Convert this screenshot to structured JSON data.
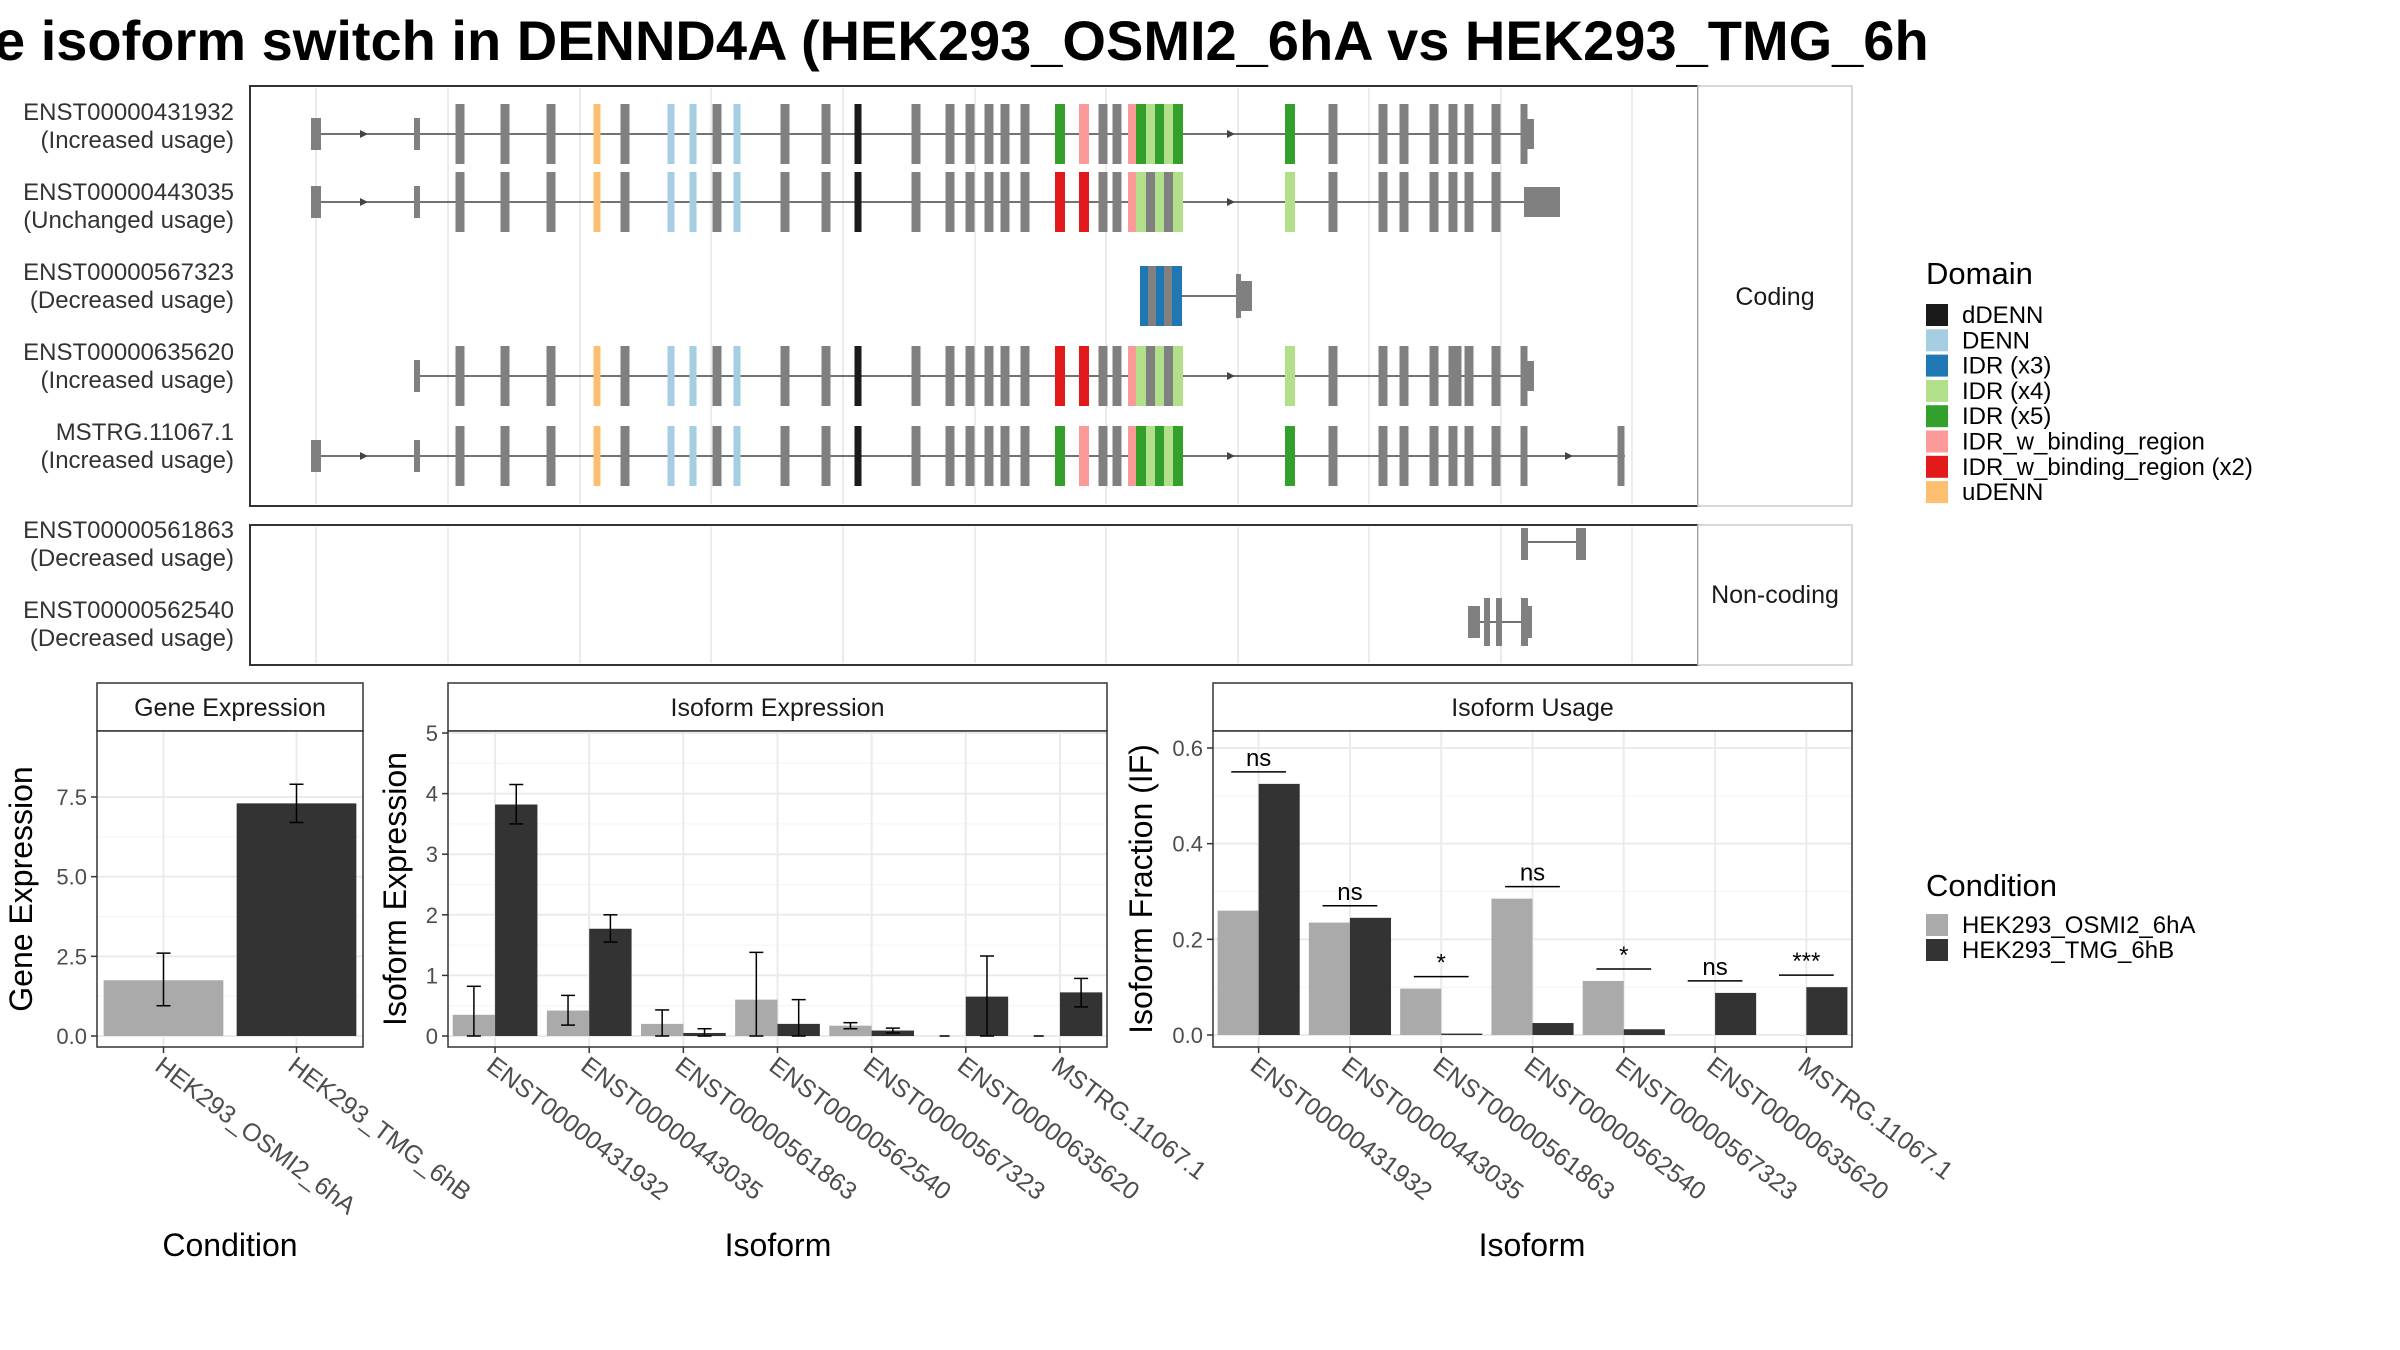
{
  "title": "e isoform switch in DENND4A (HEK293_OSMI2_6hA vs HEK293_TMG_6h",
  "colors": {
    "intron": "#444444",
    "exon": "#808080",
    "dDENN": "#1a1a1a",
    "DENN": "#a6cee3",
    "IDR (x3)": "#1f78b4",
    "IDR (x4)": "#b2df8a",
    "IDR (x5)": "#33a02c",
    "IDR_w_binding_region": "#fb9a99",
    "IDR_w_binding_region (x2)": "#e31a1c",
    "uDENN": "#fdbf6f",
    "cond1": "#aaaaaa",
    "cond2": "#333333"
  },
  "structure": {
    "coding_label": "Coding",
    "noncoding_label": "Non-coding",
    "coding": [
      {
        "id": "ENST00000431932",
        "usage": "(Increased usage)"
      },
      {
        "id": "ENST00000443035",
        "usage": "(Unchanged usage)"
      },
      {
        "id": "ENST00000567323",
        "usage": "(Decreased usage)"
      },
      {
        "id": "ENST00000635620",
        "usage": "(Increased usage)"
      },
      {
        "id": "MSTRG.11067.1",
        "usage": "(Increased usage)"
      }
    ],
    "noncoding": [
      {
        "id": "ENST00000561863",
        "usage": "(Decreased usage)"
      },
      {
        "id": "ENST00000562540",
        "usage": "(Decreased usage)"
      }
    ]
  },
  "legend_domain": {
    "title": "Domain",
    "items": [
      "dDENN",
      "DENN",
      "IDR (x3)",
      "IDR (x4)",
      "IDR (x5)",
      "IDR_w_binding_region",
      "IDR_w_binding_region (x2)",
      "uDENN"
    ]
  },
  "legend_condition": {
    "title": "Condition",
    "items": [
      "HEK293_OSMI2_6hA",
      "HEK293_TMG_6hB"
    ]
  },
  "chart_data": [
    {
      "type": "bar",
      "title": "Gene Expression",
      "xlabel": "Condition",
      "ylabel": "Gene Expression",
      "categories": [
        "HEK293_OSMI2_6hA",
        "HEK293_TMG_6hB"
      ],
      "values": [
        1.75,
        7.3
      ],
      "error_low": [
        0.95,
        6.7
      ],
      "error_high": [
        2.6,
        7.9
      ],
      "ylim": [
        0,
        9.5
      ],
      "yticks": [
        "0.0",
        "2.5",
        "5.0",
        "7.5"
      ]
    },
    {
      "type": "bar",
      "title": "Isoform Expression",
      "xlabel": "Isoform",
      "ylabel": "Isoform Expression",
      "categories": [
        "ENST00000431932",
        "ENST00000443035",
        "ENST00000561863",
        "ENST00000562540",
        "ENST00000567323",
        "ENST00000635620",
        "MSTRG.11067.1"
      ],
      "series": [
        {
          "name": "HEK293_OSMI2_6hA",
          "values": [
            0.35,
            0.42,
            0.2,
            0.6,
            0.17,
            0.0,
            0.0
          ],
          "error_low": [
            0.0,
            0.18,
            0.0,
            0.0,
            0.12,
            0.0,
            0.0
          ],
          "error_high": [
            0.82,
            0.67,
            0.43,
            1.38,
            0.22,
            0.0,
            0.0
          ]
        },
        {
          "name": "HEK293_TMG_6hB",
          "values": [
            3.82,
            1.77,
            0.05,
            0.2,
            0.09,
            0.65,
            0.72
          ],
          "error_low": [
            3.5,
            1.55,
            0.0,
            0.0,
            0.05,
            0.0,
            0.48
          ],
          "error_high": [
            4.15,
            2.0,
            0.12,
            0.6,
            0.13,
            1.32,
            0.95
          ]
        }
      ],
      "ylim": [
        0,
        5
      ],
      "yticks": [
        "0",
        "1",
        "2",
        "3",
        "4",
        "5"
      ]
    },
    {
      "type": "bar",
      "title": "Isoform Usage",
      "xlabel": "Isoform",
      "ylabel": "Isoform Fraction (IF)",
      "categories": [
        "ENST00000431932",
        "ENST00000443035",
        "ENST00000561863",
        "ENST00000562540",
        "ENST00000567323",
        "ENST00000635620",
        "MSTRG.11067.1"
      ],
      "series": [
        {
          "name": "HEK293_OSMI2_6hA",
          "values": [
            0.26,
            0.235,
            0.097,
            0.285,
            0.113,
            0.0,
            0.0
          ]
        },
        {
          "name": "HEK293_TMG_6hB",
          "values": [
            0.525,
            0.245,
            0.003,
            0.025,
            0.012,
            0.088,
            0.1
          ]
        }
      ],
      "significance": [
        "ns",
        "ns",
        "*",
        "ns",
        "*",
        "ns",
        "***"
      ],
      "ylim": [
        0,
        0.64
      ],
      "yticks": [
        "0.0",
        "0.2",
        "0.4",
        "0.6"
      ]
    }
  ]
}
